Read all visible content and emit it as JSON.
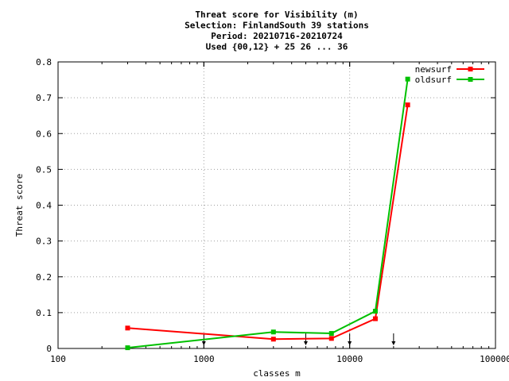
{
  "chart_data": {
    "type": "line",
    "title_lines": [
      "Threat score  for Visibility (m)",
      "Selection: FinlandSouth     39 stations",
      "Period: 20210716-20210724",
      "Used {00,12} + 25 26 ... 36"
    ],
    "xlabel": "classes m",
    "ylabel": "Threat score",
    "x_scale": "log",
    "xlim": [
      100,
      100000
    ],
    "ylim": [
      0,
      0.8
    ],
    "x_ticks": [
      {
        "value": 100,
        "label": "100"
      },
      {
        "value": 1000,
        "label": "1000"
      },
      {
        "value": 10000,
        "label": "10000"
      },
      {
        "value": 100000,
        "label": "100000"
      }
    ],
    "y_ticks": [
      {
        "value": 0,
        "label": "0"
      },
      {
        "value": 0.1,
        "label": "0.1"
      },
      {
        "value": 0.2,
        "label": "0.2"
      },
      {
        "value": 0.3,
        "label": "0.3"
      },
      {
        "value": 0.4,
        "label": "0.4"
      },
      {
        "value": 0.5,
        "label": "0.5"
      },
      {
        "value": 0.6,
        "label": "0.6"
      },
      {
        "value": 0.7,
        "label": "0.7"
      },
      {
        "value": 0.8,
        "label": "0.8"
      }
    ],
    "grid": true,
    "legend_position": "top-right",
    "series": [
      {
        "name": "newsurf",
        "color": "#ff0000",
        "x": [
          300,
          3000,
          7500,
          15000,
          25000
        ],
        "y": [
          0.057,
          0.026,
          0.028,
          0.083,
          0.68
        ]
      },
      {
        "name": "oldsurf",
        "color": "#00c000",
        "x": [
          300,
          3000,
          7500,
          15000,
          25000
        ],
        "y": [
          0.002,
          0.046,
          0.042,
          0.104,
          0.752
        ]
      }
    ],
    "threshold_markers_x": [
      1000,
      5000,
      10000,
      20000
    ]
  }
}
